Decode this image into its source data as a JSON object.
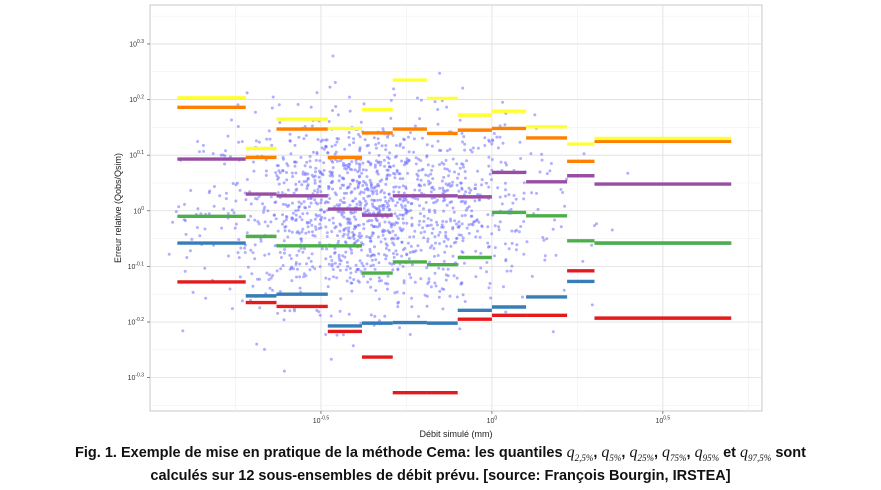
{
  "chart_data": {
    "type": "scatter",
    "title": "",
    "xlabel": "Débit simulé (mm)",
    "ylabel": "Erreur relative (Qobs/Qsim)",
    "x_scale": "log10",
    "y_scale": "log10",
    "xlim_log10": [
      -1.0,
      0.79
    ],
    "ylim_log10": [
      -0.36,
      0.37
    ],
    "x_ticks": [
      {
        "value": -0.5,
        "label": "10^-0.5"
      },
      {
        "value": 0,
        "label": "10^0"
      },
      {
        "value": 0.5,
        "label": "10^0.5"
      }
    ],
    "y_ticks": [
      {
        "value": 0.3,
        "label": "10^0.3"
      },
      {
        "value": 0.2,
        "label": "10^0.2"
      },
      {
        "value": 0.1,
        "label": "10^0.1"
      },
      {
        "value": 0,
        "label": "10^0"
      },
      {
        "value": -0.1,
        "label": "10^-0.1"
      },
      {
        "value": -0.2,
        "label": "10^-0.2"
      },
      {
        "value": -0.3,
        "label": "10^-0.3"
      }
    ],
    "grid": true,
    "legend": "none",
    "scatter_color": "#6f6fff",
    "subsets_log10_x": [
      [
        -0.92,
        -0.72
      ],
      [
        -0.72,
        -0.63
      ],
      [
        -0.63,
        -0.48
      ],
      [
        -0.48,
        -0.38
      ],
      [
        -0.38,
        -0.29
      ],
      [
        -0.29,
        -0.19
      ],
      [
        -0.19,
        -0.1
      ],
      [
        -0.1,
        0.0
      ],
      [
        0.0,
        0.1
      ],
      [
        0.1,
        0.22
      ],
      [
        0.22,
        0.3
      ],
      [
        0.3,
        0.7
      ]
    ],
    "series": [
      {
        "name": "q2.5%",
        "color": "#e41a1c",
        "values": [
          -0.128,
          -0.165,
          -0.172,
          -0.217,
          -0.263,
          -0.327,
          -0.327,
          -0.195,
          -0.188,
          -0.188,
          -0.108,
          -0.193
        ]
      },
      {
        "name": "q5%",
        "color": "#377eb8",
        "values": [
          -0.058,
          -0.153,
          -0.15,
          -0.207,
          -0.202,
          -0.201,
          -0.202,
          -0.179,
          -0.173,
          -0.155,
          -0.127,
          -0.058
        ]
      },
      {
        "name": "q25%",
        "color": "#4daf4a",
        "values": [
          -0.01,
          -0.046,
          -0.063,
          -0.063,
          -0.112,
          -0.092,
          -0.097,
          -0.084,
          -0.003,
          -0.009,
          -0.054,
          -0.058
        ]
      },
      {
        "name": "q75%",
        "color": "#984ea3",
        "values": [
          0.093,
          0.03,
          0.027,
          0.003,
          -0.008,
          0.027,
          0.027,
          0.025,
          0.069,
          0.052,
          0.063,
          0.048
        ]
      },
      {
        "name": "q95%",
        "color": "#ff7f00",
        "values": [
          0.186,
          0.096,
          0.147,
          0.096,
          0.14,
          0.147,
          0.139,
          0.145,
          0.148,
          0.131,
          0.089,
          0.125
        ]
      },
      {
        "name": "q97.5%",
        "color": "#ffff33",
        "values": [
          0.203,
          0.112,
          0.165,
          0.148,
          0.182,
          0.235,
          0.202,
          0.172,
          0.179,
          0.151,
          0.12,
          0.13
        ]
      }
    ]
  },
  "caption": {
    "prefix": "Fig. 1. Exemple de mise en pratique de la méthode Cema: les quantiles ",
    "q_symbol": "q",
    "sub1": "2,5%",
    "sub2": "5%",
    "sub3": "25%",
    "sub4": "75%",
    "sub5": "95%",
    "sub6": "97,5%",
    "sep": ", ",
    "and_text": " et ",
    "suffix": " sont",
    "line2": "calculés sur 12 sous-ensembles de débit prévu. [source: François Bourgin, IRSTEA]"
  }
}
